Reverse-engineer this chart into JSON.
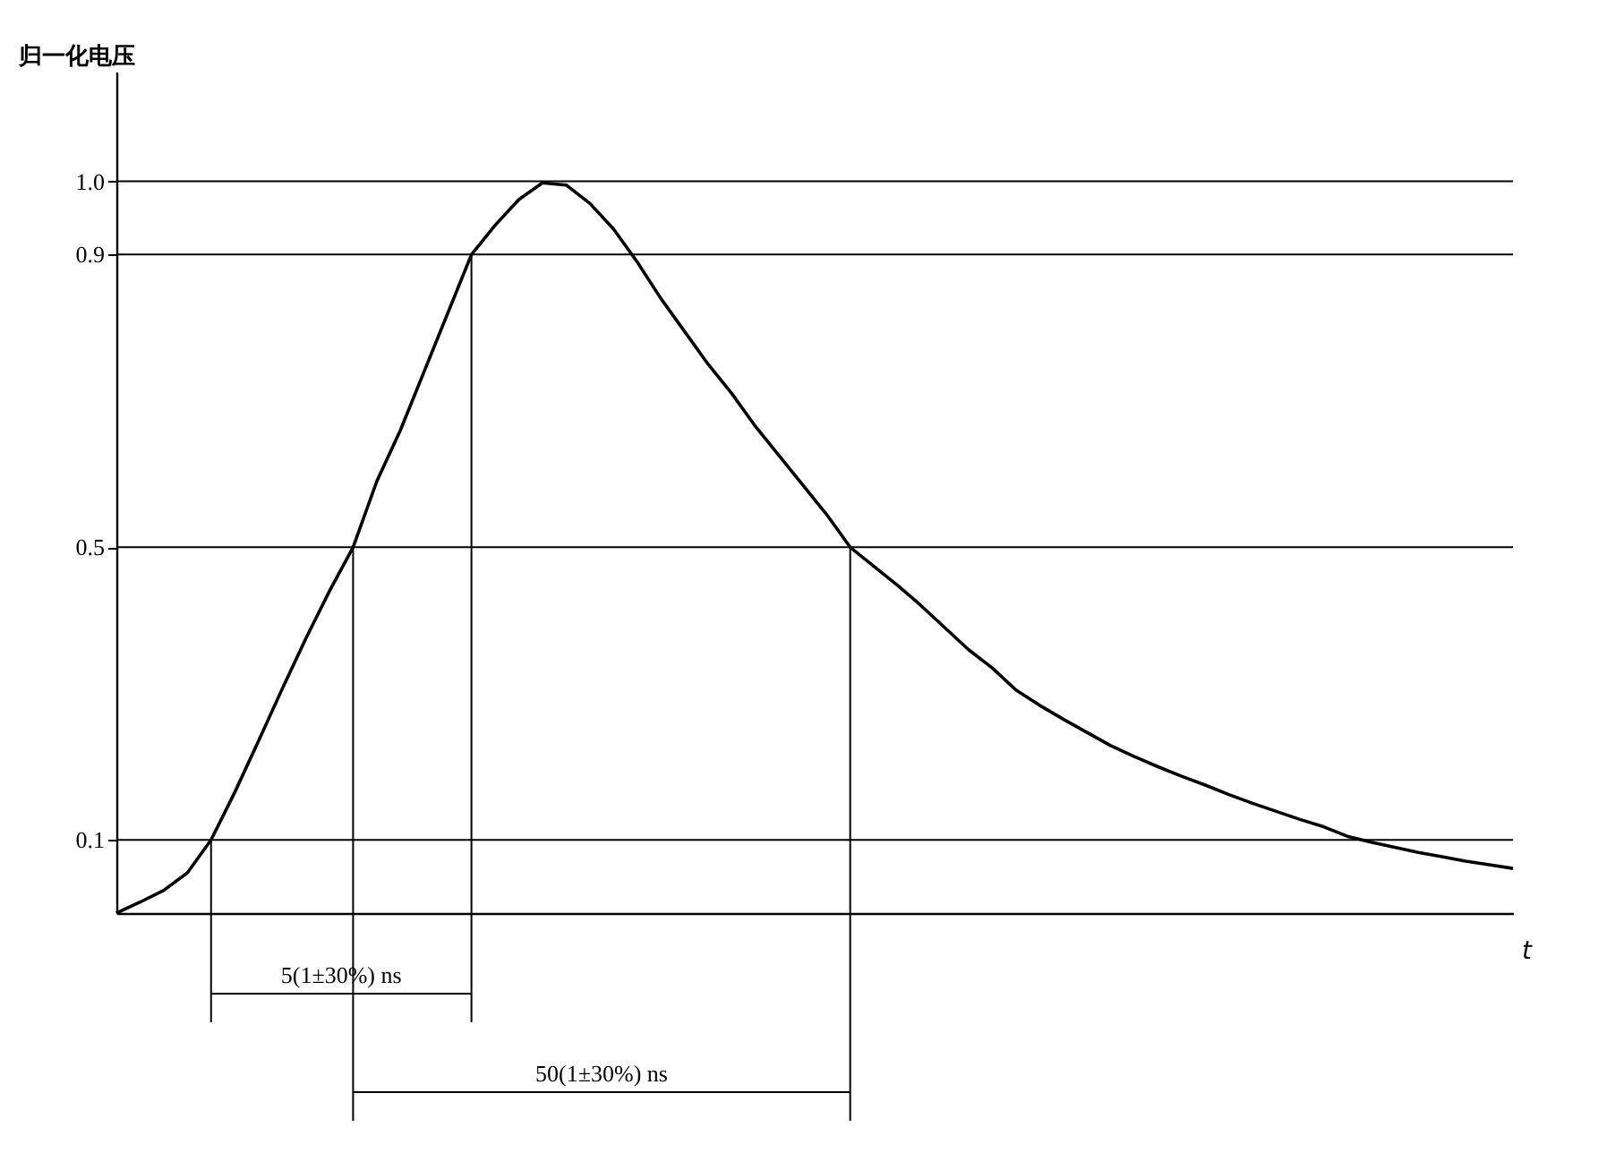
{
  "chart_data": {
    "type": "line",
    "xlabel": "t",
    "ylabel": "归一化电压",
    "categories": [
      null,
      null,
      null,
      null,
      null,
      null,
      null,
      null,
      null,
      null,
      null,
      null,
      null,
      null,
      null,
      null,
      null,
      null,
      null,
      null,
      null,
      null,
      null,
      null,
      null,
      null,
      null,
      null,
      null,
      null,
      null,
      null,
      null,
      null,
      null,
      null,
      null,
      null,
      null,
      null,
      null,
      null,
      null,
      null,
      null,
      null,
      null,
      null,
      null,
      null,
      null,
      null,
      null,
      null,
      null,
      null,
      null,
      null,
      null,
      null
    ],
    "series": [
      {
        "color": "#000000",
        "values": [
          0,
          0.015,
          0.031,
          0.055,
          0.1,
          0.165,
          0.235,
          0.306,
          0.375,
          0.44,
          0.5,
          0.59,
          0.66,
          0.74,
          0.82,
          0.9,
          0.94,
          0.975,
          0.998,
          0.995,
          0.97,
          0.935,
          0.89,
          0.84,
          0.795,
          0.75,
          0.71,
          0.665,
          0.625,
          0.585,
          0.545,
          0.5,
          0.474,
          0.448,
          0.42,
          0.39,
          0.36,
          0.335,
          0.305,
          0.284,
          0.265,
          0.247,
          0.229,
          0.214,
          0.2,
          0.187,
          0.175,
          0.162,
          0.15,
          0.139,
          0.128,
          0.118,
          0.105,
          0.097,
          0.09,
          0.083,
          0.077,
          0.071,
          0.066,
          0.061
        ]
      }
    ],
    "ylim": [
      0,
      1.15
    ],
    "yticks": [
      0.1,
      0.5,
      0.9,
      {
        "value": 1,
        "label": "1.0"
      }
    ],
    "grid": false,
    "ref_lines": [
      {
        "axis": "y",
        "value": 0.1
      },
      {
        "axis": "y",
        "value": 0.5
      },
      {
        "axis": "y",
        "value": 0.9
      },
      {
        "axis": "y",
        "value": 1.0
      }
    ],
    "annotations": [
      "5(1±30%) ns",
      "50(1±30%) ns"
    ]
  }
}
